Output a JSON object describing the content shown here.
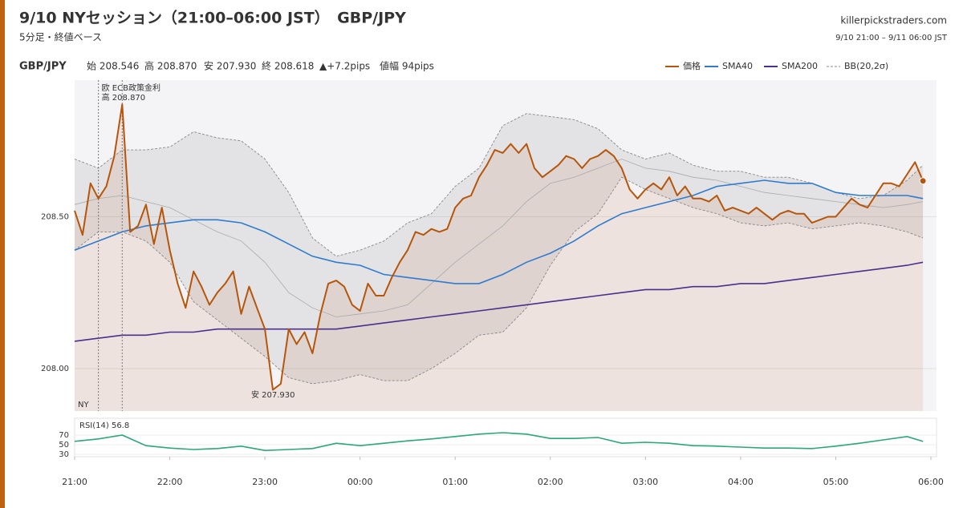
{
  "chart_data": {
    "type": "line",
    "title": "9/10 NYセッション（21:00–06:00 JST）　GBP/JPY",
    "subtitle": "5分足・終値ベース",
    "source": "killerpickstraders.com",
    "period": "9/10 21:00 – 9/11 06:00 JST",
    "symbol": "GBP/JPY",
    "stats": [
      "始 208.546",
      "高 208.870",
      "安 207.930",
      "終 208.618",
      "▲+7.2pips",
      "値幅 94pips"
    ],
    "session_label": "NY",
    "event": {
      "x": 15,
      "text": "欧 ECB政策金利"
    },
    "high": {
      "x": 30,
      "text": "高 208.870"
    },
    "low": {
      "x": 125,
      "text": "安 207.930"
    },
    "xlim": [
      0,
      540
    ],
    "xticks": [
      {
        "value": 0,
        "label": "21:00"
      },
      {
        "value": 60,
        "label": "22:00"
      },
      {
        "value": 120,
        "label": "23:00"
      },
      {
        "value": 180,
        "label": "00:00"
      },
      {
        "value": 240,
        "label": "01:00"
      },
      {
        "value": 300,
        "label": "02:00"
      },
      {
        "value": 360,
        "label": "03:00"
      },
      {
        "value": 420,
        "label": "04:00"
      },
      {
        "value": 480,
        "label": "05:00"
      },
      {
        "value": 540,
        "label": "06:00"
      }
    ],
    "ylim": [
      207.86,
      208.95
    ],
    "yticks": [
      {
        "value": 208,
        "label": "208.00"
      },
      {
        "value": 208.5,
        "label": "208.50"
      }
    ],
    "grid": true,
    "legend": "top-right",
    "x": [
      0,
      5,
      10,
      15,
      20,
      25,
      30,
      35,
      40,
      45,
      50,
      55,
      60,
      65,
      70,
      75,
      80,
      85,
      90,
      95,
      100,
      105,
      110,
      115,
      120,
      125,
      130,
      135,
      140,
      145,
      150,
      155,
      160,
      165,
      170,
      175,
      180,
      185,
      190,
      195,
      200,
      205,
      210,
      215,
      220,
      225,
      230,
      235,
      240,
      245,
      250,
      255,
      260,
      265,
      270,
      275,
      280,
      285,
      290,
      295,
      300,
      305,
      310,
      315,
      320,
      325,
      330,
      335,
      340,
      345,
      350,
      355,
      360,
      365,
      370,
      375,
      380,
      385,
      390,
      395,
      400,
      405,
      410,
      415,
      420,
      425,
      430,
      435,
      440,
      445,
      450,
      455,
      460,
      465,
      470,
      475,
      480,
      485,
      490,
      495,
      500,
      505,
      510,
      515,
      520,
      525,
      530,
      535
    ],
    "series": [
      {
        "name": "価格",
        "color": "#b5560c",
        "values": [
          208.52,
          208.44,
          208.61,
          208.56,
          208.6,
          208.7,
          208.87,
          208.45,
          208.47,
          208.54,
          208.41,
          208.53,
          208.39,
          208.28,
          208.2,
          208.32,
          208.27,
          208.21,
          208.25,
          208.28,
          208.32,
          208.18,
          208.27,
          208.2,
          208.13,
          207.93,
          207.95,
          208.13,
          208.08,
          208.12,
          208.05,
          208.18,
          208.28,
          208.29,
          208.27,
          208.21,
          208.19,
          208.28,
          208.24,
          208.24,
          208.3,
          208.35,
          208.39,
          208.45,
          208.44,
          208.46,
          208.45,
          208.46,
          208.53,
          208.56,
          208.57,
          208.63,
          208.67,
          208.72,
          208.71,
          208.74,
          208.71,
          208.74,
          208.66,
          208.63,
          208.65,
          208.67,
          208.7,
          208.69,
          208.66,
          208.69,
          208.7,
          208.72,
          208.7,
          208.66,
          208.59,
          208.56,
          208.59,
          208.61,
          208.59,
          208.63,
          208.57,
          208.6,
          208.56,
          208.56,
          208.55,
          208.57,
          208.52,
          208.53,
          208.52,
          208.51,
          208.53,
          208.51,
          208.49,
          208.51,
          208.52,
          208.51,
          208.51,
          208.48,
          208.49,
          208.5,
          208.5,
          208.53,
          208.56,
          208.54,
          208.53,
          208.57,
          208.61,
          208.61,
          208.6,
          208.64,
          208.68,
          208.618
        ]
      },
      {
        "name": "SMA40",
        "color": "#2e7bd0",
        "x": [
          0,
          15,
          30,
          45,
          60,
          75,
          90,
          105,
          120,
          135,
          150,
          165,
          180,
          195,
          210,
          225,
          240,
          255,
          270,
          285,
          300,
          315,
          330,
          345,
          360,
          375,
          390,
          405,
          420,
          435,
          450,
          465,
          480,
          495,
          510,
          525,
          535
        ],
        "values": [
          208.39,
          208.42,
          208.45,
          208.47,
          208.48,
          208.49,
          208.49,
          208.48,
          208.45,
          208.41,
          208.37,
          208.35,
          208.34,
          208.31,
          208.3,
          208.29,
          208.28,
          208.28,
          208.31,
          208.35,
          208.38,
          208.42,
          208.47,
          208.51,
          208.53,
          208.55,
          208.57,
          208.6,
          208.61,
          208.62,
          208.61,
          208.61,
          208.58,
          208.57,
          208.57,
          208.57,
          208.56
        ]
      },
      {
        "name": "SMA200",
        "color": "#4b2f8c",
        "x": [
          0,
          15,
          30,
          45,
          60,
          75,
          90,
          105,
          120,
          135,
          150,
          165,
          180,
          195,
          210,
          225,
          240,
          255,
          270,
          285,
          300,
          315,
          330,
          345,
          360,
          375,
          390,
          405,
          420,
          435,
          450,
          465,
          480,
          495,
          510,
          525,
          535
        ],
        "values": [
          208.09,
          208.1,
          208.11,
          208.11,
          208.12,
          208.12,
          208.13,
          208.13,
          208.13,
          208.13,
          208.13,
          208.13,
          208.14,
          208.15,
          208.16,
          208.17,
          208.18,
          208.19,
          208.2,
          208.21,
          208.22,
          208.23,
          208.24,
          208.25,
          208.26,
          208.26,
          208.27,
          208.27,
          208.28,
          208.28,
          208.29,
          208.3,
          208.31,
          208.32,
          208.33,
          208.34,
          208.35
        ]
      }
    ],
    "bands": {
      "name": "BB(20,2σ)",
      "color": "#888888",
      "x": [
        0,
        15,
        30,
        45,
        60,
        75,
        90,
        105,
        120,
        135,
        150,
        165,
        180,
        195,
        210,
        225,
        240,
        255,
        270,
        285,
        300,
        315,
        330,
        345,
        360,
        375,
        390,
        405,
        420,
        435,
        450,
        465,
        480,
        495,
        510,
        525,
        535
      ],
      "upper": [
        208.69,
        208.66,
        208.72,
        208.72,
        208.73,
        208.78,
        208.76,
        208.75,
        208.69,
        208.58,
        208.43,
        208.37,
        208.39,
        208.42,
        208.48,
        208.51,
        208.6,
        208.66,
        208.8,
        208.84,
        208.83,
        208.82,
        208.79,
        208.72,
        208.69,
        208.71,
        208.67,
        208.65,
        208.65,
        208.63,
        208.63,
        208.61,
        208.58,
        208.56,
        208.57,
        208.62,
        208.67
      ],
      "middle": [
        208.54,
        208.56,
        208.57,
        208.55,
        208.53,
        208.49,
        208.45,
        208.42,
        208.35,
        208.25,
        208.2,
        208.17,
        208.18,
        208.19,
        208.21,
        208.28,
        208.35,
        208.41,
        208.47,
        208.55,
        208.61,
        208.63,
        208.66,
        208.69,
        208.66,
        208.65,
        208.63,
        208.62,
        208.6,
        208.58,
        208.57,
        208.56,
        208.55,
        208.54,
        208.53,
        208.54,
        208.55
      ],
      "lower": [
        208.39,
        208.45,
        208.45,
        208.42,
        208.35,
        208.22,
        208.16,
        208.1,
        208.04,
        207.97,
        207.95,
        207.96,
        207.98,
        207.96,
        207.96,
        208.0,
        208.05,
        208.11,
        208.12,
        208.2,
        208.34,
        208.45,
        208.51,
        208.63,
        208.59,
        208.56,
        208.53,
        208.51,
        208.48,
        208.47,
        208.48,
        208.46,
        208.47,
        208.48,
        208.47,
        208.45,
        208.43
      ]
    },
    "rsi": {
      "label": "RSI(14) 56.8",
      "color": "#2aa87a",
      "ylim": [
        25,
        105
      ],
      "yticks": [
        30,
        50,
        70
      ],
      "x": [
        0,
        15,
        30,
        45,
        60,
        75,
        90,
        105,
        120,
        135,
        150,
        165,
        180,
        195,
        210,
        225,
        240,
        255,
        270,
        285,
        300,
        315,
        330,
        345,
        360,
        375,
        390,
        405,
        420,
        435,
        450,
        465,
        480,
        495,
        510,
        525,
        535
      ],
      "values": [
        57,
        62,
        70,
        48,
        43,
        40,
        42,
        47,
        38,
        40,
        42,
        53,
        48,
        53,
        58,
        62,
        67,
        72,
        75,
        72,
        63,
        63,
        65,
        53,
        55,
        53,
        48,
        47,
        45,
        43,
        43,
        42,
        47,
        53,
        60,
        67,
        56.8
      ]
    }
  }
}
